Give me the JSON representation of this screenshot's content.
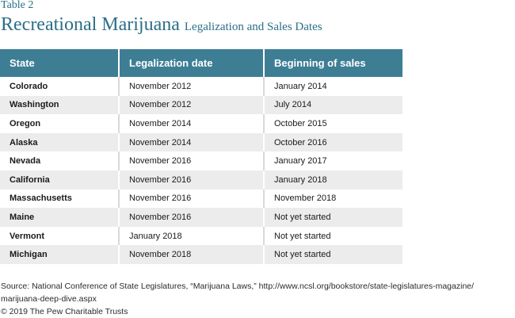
{
  "table_number": "Table 2",
  "title": "Recreational Marijuana",
  "subtitle": "Legalization and Sales Dates",
  "columns": [
    "State",
    "Legalization date",
    "Beginning of sales"
  ],
  "rows": [
    [
      "Colorado",
      "November 2012",
      "January 2014"
    ],
    [
      "Washington",
      "November 2012",
      "July 2014"
    ],
    [
      "Oregon",
      "November 2014",
      "October 2015"
    ],
    [
      "Alaska",
      "November 2014",
      "October 2016"
    ],
    [
      "Nevada",
      "November 2016",
      "January 2017"
    ],
    [
      "California",
      "November 2016",
      "January 2018"
    ],
    [
      "Massachusetts",
      "November 2016",
      "November 2018"
    ],
    [
      "Maine",
      "November 2016",
      "Not yet started"
    ],
    [
      "Vermont",
      "January 2018",
      "Not yet started"
    ],
    [
      "Michigan",
      "November 2018",
      "Not yet started"
    ]
  ],
  "source_line1": "Source: National Conference of State Legislatures, “Marijuana Laws,” http://www.ncsl.org/bookstore/state-legislatures-magazine/",
  "source_line2": "marijuana-deep-dive.aspx",
  "copyright": "© 2019 The Pew Charitable Trusts",
  "colors": {
    "accent": "#2a6f87",
    "header_bg": "#3e7e95",
    "stripe": "#ececec"
  }
}
